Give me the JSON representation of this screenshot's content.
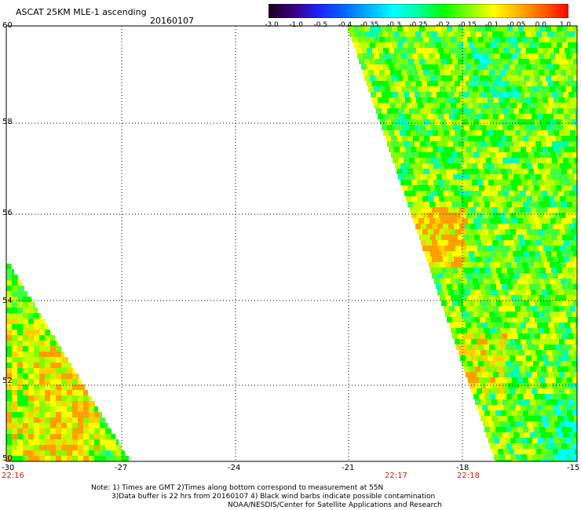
{
  "title": "ASCAT 25KM MLE-1 ascending",
  "date": "20160107",
  "colorbar": {
    "labels": [
      "-3.0",
      "-1.0",
      "-0.5",
      "-0.4",
      "-0.35",
      "-0.3",
      "-0.25",
      "-0.2",
      "-0.15",
      "-0.1",
      "-0.05",
      "0.0",
      "1.0"
    ],
    "colors": [
      "#1e0020",
      "#3a0080",
      "#2020ff",
      "#0066ff",
      "#00b0ff",
      "#00ffff",
      "#00ff9a",
      "#00ff00",
      "#80ff00",
      "#ffff00",
      "#ffb000",
      "#ff6000",
      "#ff0000"
    ]
  },
  "axes": {
    "lat_labels": [
      "60",
      "58",
      "56",
      "54",
      "52",
      "50"
    ],
    "lon_labels": [
      "-30",
      "-27",
      "-24",
      "-21",
      "-18",
      "-15"
    ],
    "grid": true
  },
  "time_labels": [
    "22:16",
    "22:17",
    "22:18"
  ],
  "notes": [
    "Note: 1) Times are GMT 2)Times along bottom correspond to measurement at 55N",
    "3)Data buffer is 22 hrs from 20160107 4) Black wind barbs indicate possible contamination",
    "NOAA/NESDIS/Center for Satellite Applications and Research"
  ]
}
